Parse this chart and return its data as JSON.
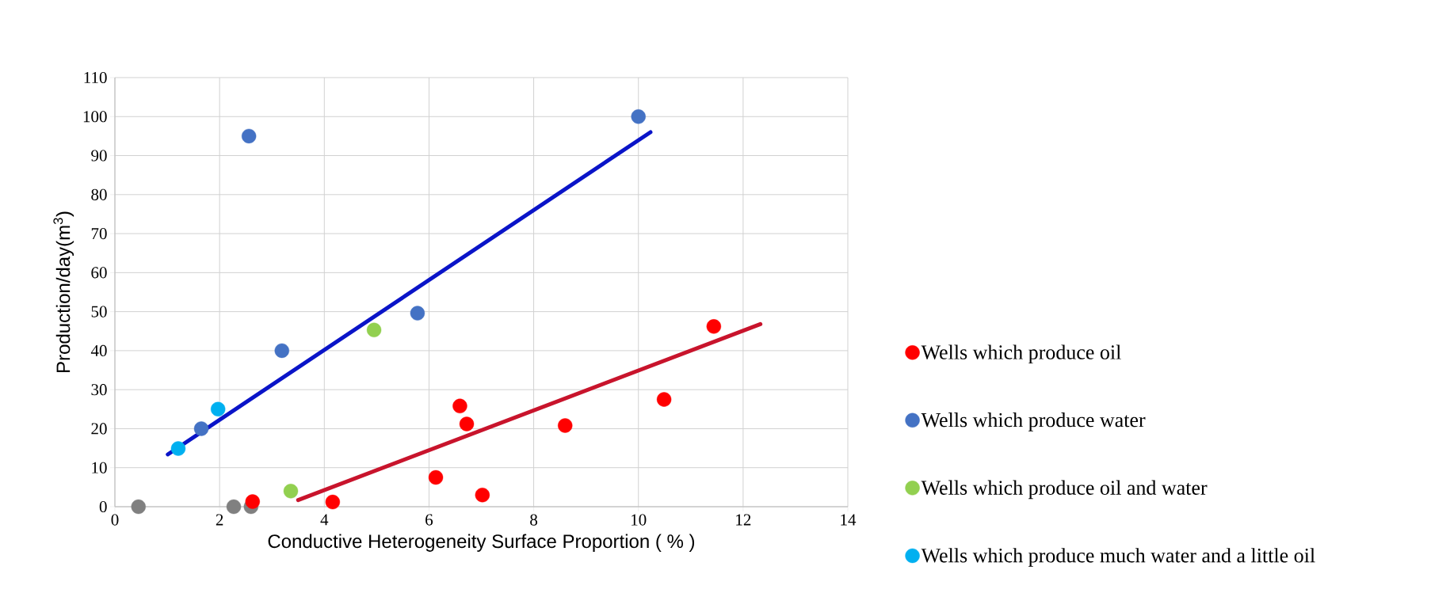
{
  "chart_data": {
    "type": "scatter",
    "xlabel": "Conductive Heterogeneity Surface Proportion ( % )",
    "ylabel": "Production/day(m$^{3}$)",
    "xlim": [
      0,
      14
    ],
    "ylim": [
      0,
      110
    ],
    "xticks": [
      0,
      2,
      4,
      6,
      8,
      10,
      12,
      14
    ],
    "yticks": [
      0,
      10,
      20,
      30,
      40,
      50,
      60,
      70,
      80,
      90,
      100,
      110
    ],
    "grid": true,
    "legend": "right",
    "series": [
      {
        "marker": "circle",
        "color": "#808080",
        "x": [
          0.45,
          2.27,
          2.6
        ],
        "values": [
          0,
          0,
          0
        ]
      },
      {
        "name": "Wells which produce oil",
        "marker": "circle",
        "color": "#ff0000",
        "x": [
          2.63,
          4.16,
          6.13,
          6.59,
          6.72,
          7.02,
          8.6,
          10.49,
          11.44
        ],
        "values": [
          1.3,
          1.2,
          7.5,
          25.8,
          21.2,
          3.0,
          20.8,
          27.5,
          46.2
        ]
      },
      {
        "name": "Wells which produce water",
        "marker": "circle",
        "color": "#4472c4",
        "x": [
          1.65,
          2.56,
          3.19,
          5.78,
          10.0
        ],
        "values": [
          20,
          95,
          40,
          49.6,
          100
        ]
      },
      {
        "name": "Wells which produce oil and water",
        "marker": "circle",
        "color": "#92d050",
        "x": [
          3.36,
          4.95
        ],
        "values": [
          4.0,
          45.3
        ]
      },
      {
        "name": "Wells which produce much water and a little oil",
        "marker": "circle",
        "color": "#00b0f0",
        "x": [
          1.21,
          1.97
        ],
        "values": [
          14.9,
          25
        ]
      },
      {
        "type": "line",
        "marker": "none",
        "color": "#0a14c8",
        "x": [
          1.01,
          10.23
        ],
        "values": [
          13.4,
          96
        ]
      },
      {
        "type": "line",
        "marker": "none",
        "color": "#c8142c",
        "x": [
          3.5,
          12.33
        ],
        "values": [
          1.7,
          46.8
        ]
      }
    ]
  }
}
